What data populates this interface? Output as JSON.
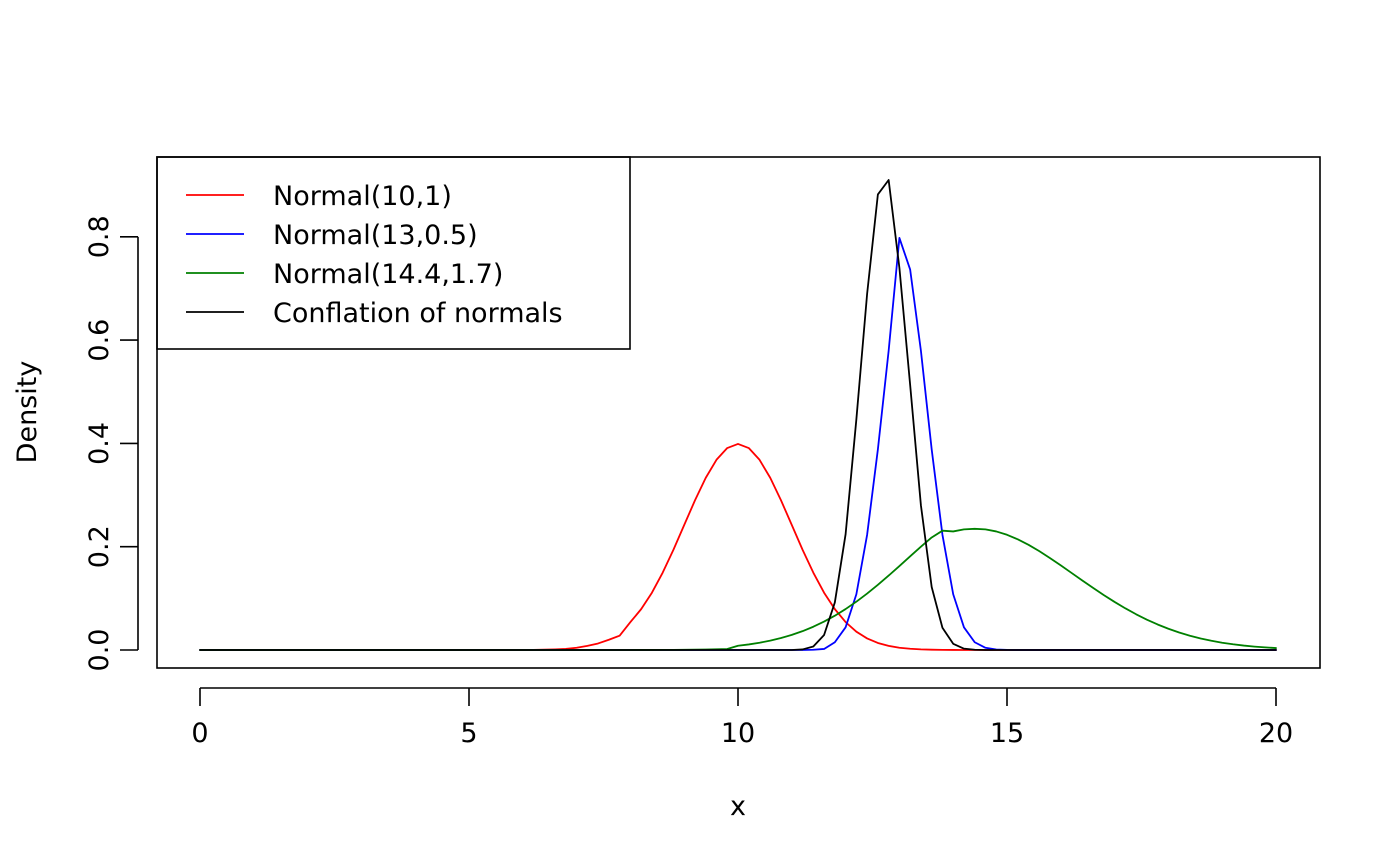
{
  "chart_data": {
    "type": "line",
    "title": "",
    "xlabel": "x",
    "ylabel": "Density",
    "xlim": [
      0,
      20
    ],
    "ylim": [
      0,
      0.91
    ],
    "x_ticks": [
      0,
      5,
      10,
      15,
      20
    ],
    "x_tick_labels": [
      "0",
      "5",
      "10",
      "15",
      "20"
    ],
    "y_ticks": [
      0,
      0.2,
      0.4,
      0.6,
      0.8
    ],
    "y_tick_labels": [
      "0.0",
      "0.2",
      "0.4",
      "0.6",
      "0.8"
    ],
    "grid": false,
    "legend": {
      "position": "top-left"
    },
    "x": [
      0,
      0.2,
      0.4,
      0.6,
      0.8,
      1,
      1.2,
      1.4,
      1.6,
      1.8,
      2,
      2.2,
      2.4,
      2.6,
      2.8,
      3,
      3.2,
      3.4,
      3.6,
      3.8,
      4,
      4.2,
      4.4,
      4.6,
      4.8,
      5,
      5.2,
      5.4,
      5.6,
      5.8,
      6,
      6.2,
      6.4,
      6.6,
      6.8,
      7,
      7.2,
      7.4,
      7.6,
      7.8,
      8,
      8.2,
      8.4,
      8.6,
      8.8,
      9,
      9.2,
      9.4,
      9.6,
      9.8,
      10,
      10.2,
      10.4,
      10.6,
      10.8,
      11,
      11.2,
      11.4,
      11.6,
      11.8,
      12,
      12.2,
      12.4,
      12.6,
      12.8,
      13,
      13.2,
      13.4,
      13.6,
      13.8,
      14,
      14.2,
      14.4,
      14.6,
      14.8,
      15,
      15.2,
      15.4,
      15.6,
      15.8,
      16,
      16.2,
      16.4,
      16.6,
      16.8,
      17,
      17.2,
      17.4,
      17.6,
      17.8,
      18,
      18.2,
      18.4,
      18.6,
      18.8,
      19,
      19.2,
      19.4,
      19.6,
      19.8,
      20
    ],
    "series": [
      {
        "name": "Normal(10,1)",
        "color": "#ff0000",
        "values": [
          0,
          0,
          0,
          0,
          0,
          0,
          0,
          0,
          0,
          0,
          0,
          0,
          0,
          0,
          0,
          0,
          0,
          0,
          0,
          0,
          0,
          0,
          0,
          0,
          0,
          0,
          0,
          1e-06,
          3e-06,
          8e-06,
          0.000134,
          0.000292,
          0.000595,
          0.001135,
          0.002029,
          0.004432,
          0.007915,
          0.012654,
          0.019837,
          0.027742,
          0.053991,
          0.079155,
          0.110921,
          0.149727,
          0.194186,
          0.241971,
          0.289692,
          0.333225,
          0.36827,
          0.391043,
          0.398942,
          0.391043,
          0.36827,
          0.333225,
          0.289692,
          0.241971,
          0.194186,
          0.149727,
          0.110921,
          0.079155,
          0.053991,
          0.035475,
          0.022395,
          0.013583,
          0.007915,
          0.004432,
          0.002384,
          0.001232,
          0.000612,
          0.000292,
          0.000134,
          5.9e-05,
          2.5e-05,
          1e-05,
          4e-06,
          1e-06,
          0,
          0,
          0,
          0,
          0,
          0,
          0,
          0,
          0,
          0,
          0,
          0,
          0,
          0,
          0,
          0,
          0,
          0,
          0,
          0,
          0,
          0,
          0,
          0,
          0
        ]
      },
      {
        "name": "Normal(13,0.5)",
        "color": "#0000ff",
        "values": [
          0,
          0,
          0,
          0,
          0,
          0,
          0,
          0,
          0,
          0,
          0,
          0,
          0,
          0,
          0,
          0,
          0,
          0,
          0,
          0,
          0,
          0,
          0,
          0,
          0,
          0,
          0,
          0,
          0,
          0,
          0,
          0,
          0,
          0,
          0,
          0,
          0,
          0,
          0,
          0,
          0,
          0,
          0,
          0,
          0,
          0,
          0,
          0,
          0,
          0,
          0,
          0,
          0,
          0,
          0,
          1.2e-05,
          4.4e-05,
          0.000488,
          0.002016,
          0.015003,
          0.043937,
          0.107982,
          0.223083,
          0.388372,
          0.579281,
          0.797885,
          0.73654,
          0.579281,
          0.388372,
          0.223083,
          0.107982,
          0.043937,
          0.015003,
          0.004283,
          0.001028,
          0.000203,
          3.5e-05,
          5e-06,
          1e-06,
          0,
          0,
          0,
          0,
          0,
          0,
          0,
          0,
          0,
          0,
          0,
          0,
          0,
          0,
          0,
          0,
          0,
          0,
          0,
          0,
          0,
          0
        ]
      },
      {
        "name": "Normal(14.4,1.7)",
        "color": "#008000",
        "values": [
          0,
          0,
          0,
          0,
          0,
          0,
          0,
          0,
          0,
          0,
          0,
          0,
          0,
          0,
          0,
          0,
          0,
          0,
          0,
          0,
          0,
          0,
          0,
          0,
          0,
          0,
          0,
          0,
          0,
          0,
          0,
          0,
          0,
          0,
          0,
          6e-06,
          1.1e-05,
          1.7e-05,
          2.6e-05,
          4e-05,
          6.1e-05,
          9.5e-05,
          0.000144,
          0.000214,
          0.000315,
          0.00046,
          0.000664,
          0.00095,
          0.001345,
          0.001881,
          0.008151,
          0.010758,
          0.014043,
          0.018128,
          0.023143,
          0.029216,
          0.036475,
          0.045032,
          0.054979,
          0.066378,
          0.079252,
          0.093577,
          0.109263,
          0.126158,
          0.144018,
          0.162553,
          0.181392,
          0.20002,
          0.217851,
          0.231016,
          0.229563,
          0.233544,
          0.234671,
          0.233544,
          0.229563,
          0.223075,
          0.214301,
          0.203637,
          0.191379,
          0.17797,
          0.163796,
          0.149211,
          0.134594,
          0.1202,
          0.106285,
          0.093052,
          0.080654,
          0.069201,
          0.058777,
          0.049414,
          0.041131,
          0.033885,
          0.027638,
          0.022319,
          0.017841,
          0.014121,
          0.011068,
          0.008589,
          0.006599,
          0.00502,
          0.00378
        ]
      },
      {
        "name": "Conflation of normals",
        "color": "#000000",
        "values": [
          0,
          0,
          0,
          0,
          0,
          0,
          0,
          0,
          0,
          0,
          0,
          0,
          0,
          0,
          0,
          0,
          0,
          0,
          0,
          0,
          0,
          0,
          0,
          0,
          0,
          0,
          0,
          0,
          0,
          0,
          0,
          0,
          0,
          0,
          0,
          0,
          0,
          0,
          0,
          0,
          0,
          0,
          0,
          0,
          0,
          0,
          0,
          0,
          0,
          0,
          0,
          0,
          0,
          0,
          0,
          6e-06,
          0.001083,
          0.006786,
          0.029,
          0.092108,
          0.2242,
          0.4465,
          0.6896,
          0.8821,
          0.91,
          0.74,
          0.513,
          0.28,
          0.122,
          0.043,
          0.012,
          0.0026,
          0.00046,
          6e-05,
          6e-06,
          0,
          0,
          0,
          0,
          0,
          0,
          0,
          0,
          0,
          0,
          0,
          0,
          0,
          0,
          0,
          0,
          0,
          0,
          0,
          0,
          0,
          0,
          0,
          0,
          0,
          0
        ]
      }
    ]
  }
}
